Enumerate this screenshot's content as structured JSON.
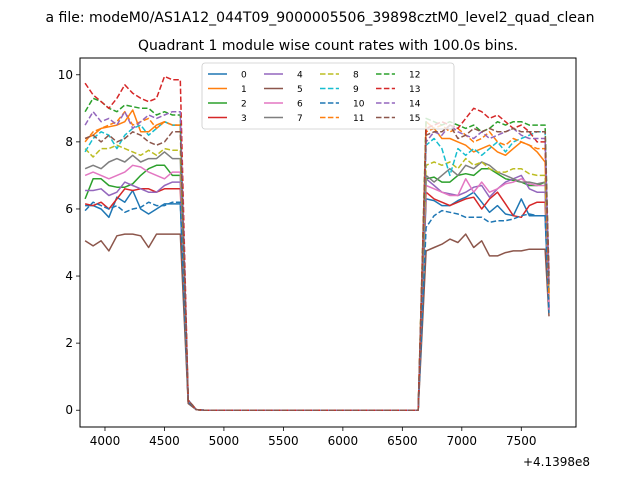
{
  "chart_data": {
    "type": "line",
    "suptitle": "a file: modeM0/AS1A12_044T09_9000005506_39898cztM0_level2_quad_clean",
    "title": "Quadrant 1 module wise count rates with 100.0s bins.",
    "xlabel": "",
    "ylabel": "",
    "x_offset_label": "+4.1398e8",
    "xlim": [
      3790,
      7960
    ],
    "ylim": [
      -0.5,
      10.5
    ],
    "x_ticks": [
      4000,
      4500,
      5000,
      5500,
      6000,
      6500,
      7000,
      7500
    ],
    "x_tick_labels": [
      "4000",
      "4500",
      "5000",
      "5500",
      "6000",
      "6500",
      "7000",
      "7500"
    ],
    "y_ticks": [
      0,
      2,
      4,
      6,
      8,
      10
    ],
    "y_tick_labels": [
      "0",
      "2",
      "4",
      "6",
      "8",
      "10"
    ],
    "grid": false,
    "legend": {
      "placement": "top-center",
      "columns": 4
    },
    "x": [
      3833,
      3900,
      3967,
      4033,
      4100,
      4167,
      4233,
      4300,
      4367,
      4433,
      4500,
      4567,
      4633,
      4700,
      4767,
      4833,
      4900,
      4967,
      5033,
      5100,
      5167,
      5233,
      5300,
      5367,
      5433,
      5500,
      5567,
      5633,
      5700,
      5767,
      5833,
      5900,
      5967,
      6033,
      6100,
      6167,
      6233,
      6300,
      6367,
      6433,
      6500,
      6567,
      6633,
      6700,
      6767,
      6833,
      6900,
      6967,
      7033,
      7100,
      7167,
      7233,
      7300,
      7367,
      7433,
      7500,
      7567,
      7633,
      7700,
      7733
    ],
    "series": [
      {
        "name": "0",
        "color": "#1f77b4",
        "dash": "solid",
        "values": [
          6.1,
          6.1,
          6.0,
          5.75,
          6.35,
          6.2,
          6.55,
          6.0,
          5.85,
          6.0,
          6.15,
          6.15,
          6.15,
          0.25,
          0.02,
          0,
          0,
          0,
          0,
          0,
          0,
          0,
          0,
          0,
          0,
          0,
          0,
          0,
          0,
          0,
          0,
          0,
          0,
          0,
          0,
          0,
          0,
          0,
          0,
          0,
          0,
          0,
          0,
          6.3,
          6.25,
          6.1,
          6.1,
          6.25,
          6.35,
          6.5,
          6.2,
          5.9,
          6.1,
          5.85,
          5.8,
          6.3,
          5.8,
          5.8,
          5.8,
          3.0
        ]
      },
      {
        "name": "1",
        "color": "#ff7f0e",
        "dash": "solid",
        "values": [
          8.1,
          8.2,
          8.4,
          8.45,
          8.5,
          8.6,
          8.95,
          8.3,
          8.3,
          8.5,
          8.6,
          8.5,
          8.5,
          0.3,
          0.02,
          0,
          0,
          0,
          0,
          0,
          0,
          0,
          0,
          0,
          0,
          0,
          0,
          0,
          0,
          0,
          0,
          0,
          0,
          0,
          0,
          0,
          0,
          0,
          0,
          0,
          0,
          0,
          0,
          8.6,
          8.4,
          8.1,
          8.1,
          8.0,
          7.9,
          7.7,
          7.8,
          7.9,
          7.7,
          7.6,
          7.8,
          8.0,
          7.9,
          7.7,
          7.4,
          3.2
        ]
      },
      {
        "name": "2",
        "color": "#2ca02c",
        "dash": "solid",
        "values": [
          6.3,
          6.9,
          6.9,
          6.7,
          6.65,
          6.65,
          6.75,
          7.0,
          7.2,
          7.3,
          7.3,
          7.0,
          7.0,
          0.25,
          0.02,
          0,
          0,
          0,
          0,
          0,
          0,
          0,
          0,
          0,
          0,
          0,
          0,
          0,
          0,
          0,
          0,
          0,
          0,
          0,
          0,
          0,
          0,
          0,
          0,
          0,
          0,
          0,
          0,
          6.9,
          6.95,
          6.8,
          6.8,
          7.0,
          7.05,
          7.0,
          7.2,
          7.2,
          7.05,
          6.9,
          6.85,
          6.8,
          6.7,
          6.7,
          6.8,
          3.3
        ]
      },
      {
        "name": "3",
        "color": "#d62728",
        "dash": "solid",
        "values": [
          6.15,
          6.1,
          6.2,
          6.0,
          6.3,
          6.6,
          6.55,
          6.6,
          6.6,
          6.5,
          6.6,
          6.6,
          6.6,
          0.25,
          0.02,
          0,
          0,
          0,
          0,
          0,
          0,
          0,
          0,
          0,
          0,
          0,
          0,
          0,
          0,
          0,
          0,
          0,
          0,
          0,
          0,
          0,
          0,
          0,
          0,
          0,
          0,
          0,
          0,
          6.5,
          6.3,
          6.2,
          6.1,
          6.2,
          6.3,
          6.35,
          6.0,
          6.3,
          6.5,
          6.15,
          5.8,
          5.75,
          6.1,
          6.2,
          6.2,
          3.0
        ]
      },
      {
        "name": "4",
        "color": "#9467bd",
        "dash": "solid",
        "values": [
          6.55,
          6.55,
          6.6,
          6.4,
          6.5,
          6.8,
          6.7,
          6.6,
          6.5,
          6.5,
          6.7,
          6.8,
          6.8,
          0.25,
          0.02,
          0,
          0,
          0,
          0,
          0,
          0,
          0,
          0,
          0,
          0,
          0,
          0,
          0,
          0,
          0,
          0,
          0,
          0,
          0,
          0,
          0,
          0,
          0,
          0,
          0,
          0,
          0,
          0,
          6.9,
          6.7,
          6.5,
          6.45,
          6.4,
          6.5,
          6.65,
          6.7,
          6.35,
          6.6,
          6.8,
          6.9,
          7.0,
          6.6,
          6.5,
          6.5,
          3.1
        ]
      },
      {
        "name": "5",
        "color": "#8c564b",
        "dash": "solid",
        "values": [
          5.05,
          4.9,
          5.05,
          4.75,
          5.2,
          5.25,
          5.25,
          5.2,
          4.85,
          5.25,
          5.25,
          5.25,
          5.25,
          0.2,
          0.02,
          0,
          0,
          0,
          0,
          0,
          0,
          0,
          0,
          0,
          0,
          0,
          0,
          0,
          0,
          0,
          0,
          0,
          0,
          0,
          0,
          0,
          0,
          0,
          0,
          0,
          0,
          0,
          0,
          4.75,
          4.85,
          4.95,
          5.1,
          5.0,
          5.25,
          4.85,
          5.05,
          4.6,
          4.6,
          4.7,
          4.75,
          4.75,
          4.8,
          4.8,
          4.8,
          2.8
        ]
      },
      {
        "name": "6",
        "color": "#e377c2",
        "dash": "solid",
        "values": [
          7.0,
          7.1,
          7.0,
          6.9,
          7.0,
          7.1,
          7.3,
          7.25,
          7.1,
          7.0,
          6.9,
          7.1,
          7.1,
          0.3,
          0.02,
          0,
          0,
          0,
          0,
          0,
          0,
          0,
          0,
          0,
          0,
          0,
          0,
          0,
          0,
          0,
          0,
          0,
          0,
          0,
          0,
          0,
          0,
          0,
          0,
          0,
          0,
          0,
          0,
          6.7,
          6.6,
          6.5,
          6.4,
          6.4,
          6.9,
          6.5,
          6.8,
          6.5,
          6.6,
          6.75,
          6.8,
          6.9,
          6.75,
          6.7,
          6.7,
          3.0
        ]
      },
      {
        "name": "7",
        "color": "#7f7f7f",
        "dash": "solid",
        "values": [
          7.2,
          7.3,
          7.2,
          7.4,
          7.5,
          7.4,
          7.6,
          7.4,
          7.5,
          7.5,
          7.7,
          7.5,
          7.5,
          0.3,
          0.02,
          0,
          0,
          0,
          0,
          0,
          0,
          0,
          0,
          0,
          0,
          0,
          0,
          0,
          0,
          0,
          0,
          0,
          0,
          0,
          0,
          0,
          0,
          0,
          0,
          0,
          0,
          0,
          0,
          7.0,
          6.8,
          7.0,
          7.2,
          7.0,
          7.3,
          7.2,
          7.4,
          7.3,
          7.1,
          7.0,
          6.9,
          6.8,
          6.8,
          6.75,
          6.8,
          3.5
        ]
      },
      {
        "name": "8",
        "color": "#bcbd22",
        "dash": "dashed",
        "values": [
          7.8,
          7.55,
          7.8,
          7.8,
          7.9,
          7.8,
          7.7,
          7.6,
          7.75,
          7.6,
          7.8,
          7.75,
          7.75,
          0.3,
          0.02,
          0,
          0,
          0,
          0,
          0,
          0,
          0,
          0,
          0,
          0,
          0,
          0,
          0,
          0,
          0,
          0,
          0,
          0,
          0,
          0,
          0,
          0,
          0,
          0,
          0,
          0,
          0,
          0,
          7.3,
          7.4,
          7.3,
          7.4,
          7.2,
          7.5,
          7.3,
          7.4,
          7.2,
          7.1,
          7.1,
          7.2,
          7.2,
          7.05,
          7.0,
          7.0,
          3.5
        ]
      },
      {
        "name": "9",
        "color": "#17becf",
        "dash": "dashed",
        "values": [
          7.7,
          8.1,
          8.3,
          8.2,
          7.8,
          8.2,
          8.4,
          8.5,
          8.2,
          8.4,
          8.6,
          8.5,
          8.5,
          0.3,
          0.02,
          0,
          0,
          0,
          0,
          0,
          0,
          0,
          0,
          0,
          0,
          0,
          0,
          0,
          0,
          0,
          0,
          0,
          0,
          0,
          0,
          0,
          0,
          0,
          0,
          0,
          0,
          0,
          0,
          7.9,
          8.1,
          7.8,
          7.0,
          7.8,
          7.6,
          7.8,
          7.6,
          7.8,
          8.0,
          7.7,
          8.0,
          8.1,
          8.2,
          8.3,
          8.3,
          3.6
        ]
      },
      {
        "name": "10",
        "color": "#1f77b4",
        "dash": "dashed",
        "values": [
          5.95,
          6.2,
          6.1,
          6.0,
          6.1,
          5.9,
          6.0,
          6.05,
          6.2,
          6.1,
          6.1,
          6.2,
          6.2,
          0.25,
          0.02,
          0,
          0,
          0,
          0,
          0,
          0,
          0,
          0,
          0,
          0,
          0,
          0,
          0,
          0,
          0,
          0,
          0,
          0,
          0,
          0,
          0,
          0,
          0,
          0,
          0,
          0,
          0,
          0,
          5.45,
          5.8,
          5.95,
          5.9,
          5.85,
          5.75,
          5.75,
          5.75,
          5.6,
          5.65,
          5.65,
          5.7,
          5.8,
          5.85,
          5.8,
          5.8,
          2.9
        ]
      },
      {
        "name": "11",
        "color": "#ff7f0e",
        "dash": "dashed",
        "values": [
          8.0,
          8.3,
          8.4,
          8.5,
          8.6,
          8.9,
          8.5,
          8.6,
          8.7,
          8.4,
          8.6,
          8.5,
          8.5,
          0.3,
          0.02,
          0,
          0,
          0,
          0,
          0,
          0,
          0,
          0,
          0,
          0,
          0,
          0,
          0,
          0,
          0,
          0,
          0,
          0,
          0,
          0,
          0,
          0,
          0,
          0,
          0,
          0,
          0,
          0,
          8.3,
          8.4,
          8.5,
          8.3,
          8.4,
          8.2,
          8.0,
          8.1,
          8.3,
          8.0,
          7.9,
          8.1,
          8.0,
          7.9,
          7.8,
          7.8,
          3.4
        ]
      },
      {
        "name": "12",
        "color": "#2ca02c",
        "dash": "dashed",
        "values": [
          8.9,
          9.3,
          9.2,
          9.0,
          8.9,
          9.1,
          9.05,
          9.0,
          9.0,
          8.8,
          8.9,
          8.8,
          8.8,
          0.3,
          0.02,
          0,
          0,
          0,
          0,
          0,
          0,
          0,
          0,
          0,
          0,
          0,
          0,
          0,
          0,
          0,
          0,
          0,
          0,
          0,
          0,
          0,
          0,
          0,
          0,
          0,
          0,
          0,
          0,
          8.7,
          8.6,
          8.5,
          8.6,
          8.5,
          8.4,
          8.5,
          8.3,
          8.4,
          8.6,
          8.5,
          8.6,
          8.6,
          8.5,
          8.5,
          8.5,
          4.0
        ]
      },
      {
        "name": "13",
        "color": "#d62728",
        "dash": "dashed",
        "values": [
          9.75,
          9.4,
          9.2,
          9.0,
          9.3,
          9.7,
          9.45,
          9.3,
          9.2,
          9.3,
          9.95,
          9.85,
          9.85,
          0.3,
          0.02,
          0,
          0,
          0,
          0,
          0,
          0,
          0,
          0,
          0,
          0,
          0,
          0,
          0,
          0,
          0,
          0,
          0,
          0,
          0,
          0,
          0,
          0,
          0,
          0,
          0,
          0,
          0,
          0,
          8.4,
          8.5,
          8.6,
          8.5,
          8.4,
          8.7,
          9.0,
          8.9,
          8.7,
          8.8,
          8.6,
          8.4,
          8.5,
          8.3,
          8.0,
          8.0,
          4.1
        ]
      },
      {
        "name": "14",
        "color": "#9467bd",
        "dash": "dashed",
        "values": [
          8.5,
          8.9,
          8.6,
          8.7,
          8.5,
          8.9,
          8.4,
          8.6,
          8.8,
          8.7,
          8.8,
          8.9,
          8.9,
          0.3,
          0.02,
          0,
          0,
          0,
          0,
          0,
          0,
          0,
          0,
          0,
          0,
          0,
          0,
          0,
          0,
          0,
          0,
          0,
          0,
          0,
          0,
          0,
          0,
          0,
          0,
          0,
          0,
          0,
          0,
          8.0,
          8.3,
          8.2,
          8.5,
          8.3,
          8.2,
          8.1,
          8.3,
          8.1,
          8.2,
          8.3,
          8.4,
          8.2,
          8.1,
          8.1,
          8.1,
          3.8
        ]
      },
      {
        "name": "15",
        "color": "#8c564b",
        "dash": "dashed",
        "values": [
          8.1,
          8.2,
          8.0,
          8.2,
          8.0,
          8.1,
          8.3,
          8.2,
          8.0,
          7.9,
          8.0,
          8.3,
          8.3,
          0.3,
          0.02,
          0,
          0,
          0,
          0,
          0,
          0,
          0,
          0,
          0,
          0,
          0,
          0,
          0,
          0,
          0,
          0,
          0,
          0,
          0,
          0,
          0,
          0,
          0,
          0,
          0,
          0,
          0,
          0,
          8.2,
          8.3,
          8.3,
          8.5,
          8.1,
          8.2,
          8.4,
          8.3,
          8.4,
          8.3,
          8.3,
          8.4,
          8.3,
          8.3,
          8.3,
          8.3,
          3.7
        ]
      }
    ]
  }
}
